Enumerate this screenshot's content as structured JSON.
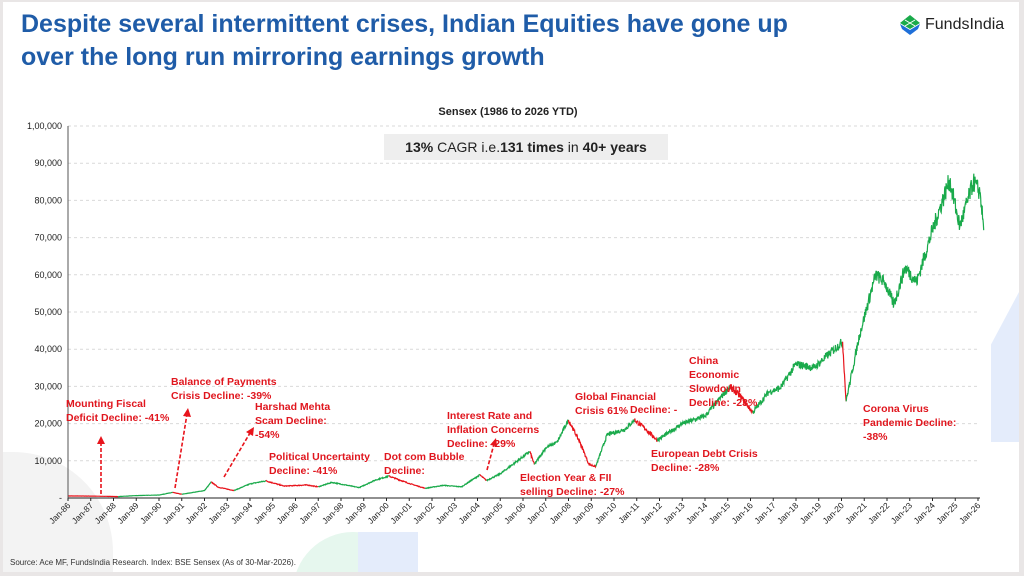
{
  "title": "Despite several intermittent crises, Indian Equities have gone up over the long run mirroring earnings growth",
  "logo": {
    "text": "FundsIndia",
    "icon": "fundsindia-leaf-icon"
  },
  "source": "Source: Ace MF, FundsIndia Research. Index: BSE Sensex (As of 30-Mar-2026).",
  "cagr": {
    "part1": "13%",
    "part2": " CAGR i.e.",
    "part3": "131 times",
    "part4": " in ",
    "part5": "40+ years"
  },
  "colors": {
    "up": "#1aaa4b",
    "down": "#e8141c",
    "title": "#1f5ca8",
    "annotation": "#e0161e"
  },
  "annotations": [
    "Mounting Fiscal Deficit Decline: -41%",
    "Balance of Payments Crisis Decline: -39%",
    "Harshad Mehta Scam Decline: -54%",
    "Political Uncertainty Decline: -41%",
    "Dot com Bubble Decline:",
    "Interest Rate and Inflation Concerns Decline: -29%",
    "Election Year & FII selling Decline: -27%",
    "Global Financial Crisis 61%",
    "Decline: -",
    "European Debt Crisis Decline: -28%",
    "China Economic Slowdown Decline: -23%",
    "Corona Virus Pandemic Decline: -38%"
  ],
  "chart_data": {
    "type": "line",
    "title": "Sensex (1986 to 2026 YTD)",
    "xlabel": "",
    "ylabel": "",
    "xlim": [
      1986,
      2026.25
    ],
    "ylim": [
      0,
      100000
    ],
    "grid": "horizontal dashed",
    "y_ticks": [
      "-",
      "10,000",
      "20,000",
      "30,000",
      "40,000",
      "50,000",
      "60,000",
      "70,000",
      "80,000",
      "90,000",
      "1,00,000"
    ],
    "x_ticks": [
      "Jan-86",
      "Jan-87",
      "Jan-88",
      "Jan-89",
      "Jan-90",
      "Jan-91",
      "Jan-92",
      "Jan-93",
      "Jan-94",
      "Jan-95",
      "Jan-96",
      "Jan-97",
      "Jan-98",
      "Jan-99",
      "Jan-00",
      "Jan-01",
      "Jan-02",
      "Jan-03",
      "Jan-04",
      "Jan-05",
      "Jan-06",
      "Jan-07",
      "Jan-08",
      "Jan-09",
      "Jan-10",
      "Jan-11",
      "Jan-12",
      "Jan-13",
      "Jan-14",
      "Jan-15",
      "Jan-16",
      "Jan-17",
      "Jan-18",
      "Jan-19",
      "Jan-20",
      "Jan-21",
      "Jan-22",
      "Jan-23",
      "Jan-24",
      "Jan-25",
      "Jan-26"
    ],
    "segments": [
      {
        "trend": "down",
        "points": [
          [
            1986,
            550
          ],
          [
            1987,
            520
          ],
          [
            1988.2,
            380
          ]
        ]
      },
      {
        "trend": "up",
        "points": [
          [
            1988.2,
            380
          ],
          [
            1989,
            650
          ],
          [
            1990,
            800
          ],
          [
            1990.6,
            1500
          ]
        ]
      },
      {
        "trend": "down",
        "points": [
          [
            1990.6,
            1500
          ],
          [
            1991,
            1000
          ]
        ]
      },
      {
        "trend": "up",
        "points": [
          [
            1991,
            1000
          ],
          [
            1992,
            2000
          ],
          [
            1992.3,
            4300
          ]
        ]
      },
      {
        "trend": "down",
        "points": [
          [
            1992.3,
            4300
          ],
          [
            1992.6,
            2900
          ],
          [
            1993.3,
            2000
          ]
        ]
      },
      {
        "trend": "up",
        "points": [
          [
            1993.3,
            2000
          ],
          [
            1994,
            3800
          ],
          [
            1994.7,
            4600
          ]
        ]
      },
      {
        "trend": "down",
        "points": [
          [
            1994.7,
            4600
          ],
          [
            1995.5,
            3200
          ],
          [
            1996.5,
            3500
          ],
          [
            1997,
            3000
          ]
        ]
      },
      {
        "trend": "up",
        "points": [
          [
            1997,
            3000
          ],
          [
            1997.6,
            4200
          ],
          [
            1998.8,
            2800
          ],
          [
            1999.5,
            4800
          ],
          [
            2000.1,
            5900
          ]
        ]
      },
      {
        "trend": "down",
        "points": [
          [
            2000.1,
            5900
          ],
          [
            2001,
            3900
          ],
          [
            2001.7,
            2600
          ]
        ]
      },
      {
        "trend": "up",
        "points": [
          [
            2001.7,
            2600
          ],
          [
            2002.5,
            3400
          ],
          [
            2003.3,
            3000
          ],
          [
            2004.1,
            6200
          ]
        ]
      },
      {
        "trend": "down",
        "points": [
          [
            2004.1,
            6200
          ],
          [
            2004.4,
            4700
          ]
        ]
      },
      {
        "trend": "up",
        "points": [
          [
            2004.4,
            4700
          ],
          [
            2005,
            6500
          ],
          [
            2006.3,
            12500
          ]
        ]
      },
      {
        "trend": "down",
        "points": [
          [
            2006.3,
            12500
          ],
          [
            2006.5,
            9000
          ]
        ]
      },
      {
        "trend": "up",
        "points": [
          [
            2006.5,
            9000
          ],
          [
            2007,
            13500
          ],
          [
            2007.5,
            15000
          ],
          [
            2008,
            21000
          ]
        ]
      },
      {
        "trend": "down",
        "points": [
          [
            2008,
            21000
          ],
          [
            2008.5,
            15000
          ],
          [
            2008.9,
            9000
          ],
          [
            2009.2,
            8500
          ]
        ]
      },
      {
        "trend": "up",
        "points": [
          [
            2009.2,
            8500
          ],
          [
            2009.7,
            17000
          ],
          [
            2010.5,
            18500
          ],
          [
            2010.9,
            21000
          ]
        ]
      },
      {
        "trend": "down",
        "points": [
          [
            2010.9,
            21000
          ],
          [
            2011.4,
            18500
          ],
          [
            2011.9,
            15500
          ]
        ]
      },
      {
        "trend": "up",
        "points": [
          [
            2011.9,
            15500
          ],
          [
            2013,
            20000
          ],
          [
            2014,
            22000
          ],
          [
            2015.1,
            30000
          ]
        ]
      },
      {
        "trend": "down",
        "points": [
          [
            2015.1,
            30000
          ],
          [
            2015.6,
            27000
          ],
          [
            2016.1,
            23000
          ]
        ]
      },
      {
        "trend": "up",
        "points": [
          [
            2016.1,
            23000
          ],
          [
            2016.8,
            28500
          ],
          [
            2017.3,
            29500
          ],
          [
            2018,
            36000
          ],
          [
            2018.8,
            35000
          ],
          [
            2019.5,
            39000
          ],
          [
            2020.05,
            42000
          ]
        ]
      },
      {
        "trend": "down",
        "points": [
          [
            2020.05,
            42000
          ],
          [
            2020.2,
            26000
          ]
        ]
      },
      {
        "trend": "up",
        "points": [
          [
            2020.2,
            26000
          ],
          [
            2020.8,
            44000
          ],
          [
            2021.5,
            60000
          ],
          [
            2021.9,
            58000
          ],
          [
            2022.3,
            52000
          ],
          [
            2022.8,
            62000
          ],
          [
            2023.3,
            58000
          ],
          [
            2024,
            72000
          ],
          [
            2024.75,
            85500
          ],
          [
            2025.2,
            73000
          ],
          [
            2025.8,
            85000
          ],
          [
            2026.1,
            82000
          ],
          [
            2026.25,
            72000
          ]
        ]
      }
    ]
  }
}
